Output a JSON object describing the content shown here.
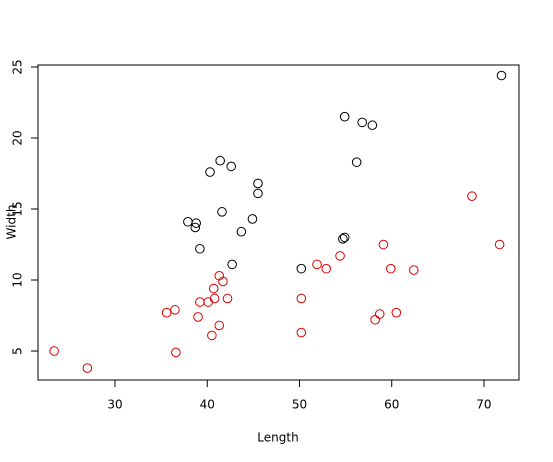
{
  "chart_data": {
    "type": "scatter",
    "xlabel": "Length",
    "ylabel": "Width",
    "xlim": [
      21.65,
      73.8
    ],
    "ylim": [
      2.96,
      25.14
    ],
    "xticks": [
      30,
      40,
      50,
      60,
      70
    ],
    "yticks": [
      5,
      10,
      15,
      20,
      25
    ],
    "series": [
      {
        "color": "#000000",
        "x": [
          71.9,
          54.9,
          56.8,
          57.9,
          56.2,
          41.4,
          42.6,
          40.3,
          45.5,
          45.5,
          41.6,
          37.9,
          44.9,
          38.8,
          38.7,
          43.7,
          39.2,
          54.9,
          54.7,
          50.2,
          42.7
        ],
        "y": [
          24.4,
          21.5,
          21.1,
          20.9,
          18.3,
          18.4,
          18.0,
          17.6,
          16.8,
          16.1,
          14.8,
          14.1,
          14.3,
          14.0,
          13.7,
          13.4,
          12.2,
          13.0,
          12.9,
          10.8,
          11.1
        ]
      },
      {
        "color": "#dd0000",
        "x": [
          23.4,
          27.0,
          35.6,
          36.5,
          36.6,
          39.2,
          40.1,
          39.0,
          41.3,
          42.2,
          41.3,
          41.7,
          40.7,
          40.8,
          40.5,
          50.2,
          50.2,
          51.9,
          54.4,
          52.9,
          59.1,
          59.9,
          58.7,
          58.2,
          60.5,
          62.4,
          68.7,
          71.7
        ],
        "y": [
          5.0,
          3.8,
          7.7,
          7.9,
          4.9,
          8.45,
          8.45,
          7.4,
          6.8,
          8.7,
          10.3,
          9.9,
          9.4,
          8.7,
          6.1,
          8.7,
          6.3,
          11.1,
          11.7,
          10.8,
          12.5,
          10.8,
          7.6,
          7.2,
          7.7,
          10.7,
          15.9,
          12.5
        ]
      }
    ]
  }
}
